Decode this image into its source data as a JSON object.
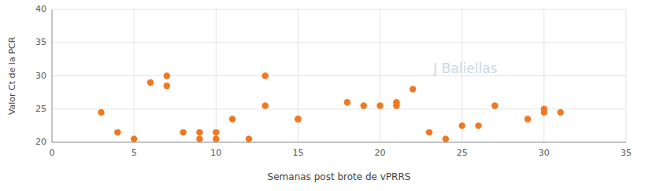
{
  "chart_data": {
    "type": "scatter",
    "x": [
      3,
      4,
      5,
      6,
      7,
      7,
      8,
      9,
      9,
      10,
      10,
      11,
      12,
      13,
      13,
      15,
      15,
      18,
      19,
      20,
      21,
      21,
      22,
      23,
      24,
      25,
      26,
      27,
      29,
      30,
      30,
      31
    ],
    "values": [
      24.5,
      21.5,
      20.5,
      29,
      28.5,
      30,
      21.5,
      21.5,
      20.5,
      20.5,
      21.5,
      23.5,
      20.5,
      30,
      25.5,
      23.5,
      23.5,
      26,
      25.5,
      25.5,
      26,
      25.5,
      28,
      21.5,
      20.5,
      22.5,
      22.5,
      25.5,
      23.5,
      25,
      24.5,
      24.5
    ],
    "color": "#f07820",
    "x_label": "Semanas post brote de vPRRS",
    "y_label": "Valor Ct de la PCR",
    "xlim": [
      0,
      35
    ],
    "ylim": [
      20,
      40
    ],
    "xticks": [
      0,
      5,
      10,
      15,
      20,
      25,
      30,
      35
    ],
    "yticks": [
      20,
      25,
      30,
      35,
      40
    ],
    "grid": true,
    "annotations": [
      "J Baliellas"
    ]
  }
}
